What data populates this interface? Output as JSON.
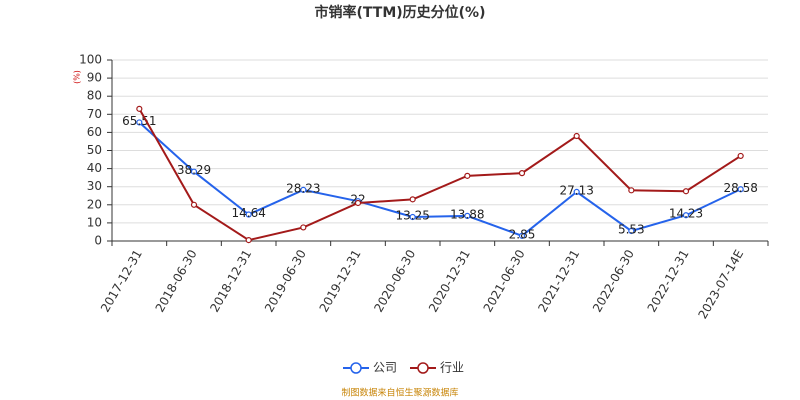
{
  "chart_data": {
    "type": "line",
    "title": "市销率(TTM)历史分位(%)",
    "y_label": "(%)",
    "source": "制图数据来自恒生聚源数据库",
    "categories": [
      "2017-12-31",
      "2018-06-30",
      "2018-12-31",
      "2019-06-30",
      "2019-12-31",
      "2020-06-30",
      "2020-12-31",
      "2021-06-30",
      "2021-12-31",
      "2022-06-30",
      "2022-12-31",
      "2023-07-14E"
    ],
    "series": [
      {
        "name": "公司",
        "color": "#2563eb",
        "values": [
          65.51,
          38.29,
          14.64,
          28.23,
          22,
          13.25,
          13.88,
          2.85,
          27.13,
          5.53,
          14.23,
          28.58
        ],
        "data_labels": true
      },
      {
        "name": "行业",
        "color": "#a31a1a",
        "values": [
          73,
          20,
          0.5,
          7.5,
          21,
          23,
          36,
          37.5,
          58,
          28,
          27.5,
          47
        ],
        "data_labels": false
      }
    ],
    "ylim": [
      0,
      100
    ],
    "yticks": [
      0,
      10,
      20,
      30,
      40,
      50,
      60,
      70,
      80,
      90,
      100
    ],
    "grid": true
  }
}
